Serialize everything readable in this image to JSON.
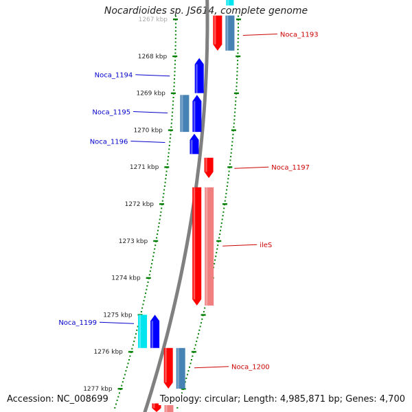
{
  "title": "Nocardioides sp. JS614, complete genome",
  "footer": {
    "accession": "Accession: NC_008699",
    "topology": "Topology: circular; Length: 4,985,871 bp; Genes: 4,700"
  },
  "colors": {
    "forward_gene": "#ff0000",
    "forward_secondary": "#f08080",
    "reverse_gene": "#0000ff",
    "reverse_secondary": "#4682b4",
    "cyan_gene": "#00e5ee",
    "scale_ticks": "#008000",
    "backbone": "#808080",
    "label_left": "#0000cc",
    "label_right": "#cc0000"
  },
  "scale": {
    "unit": "kbp",
    "ticks": [
      {
        "kbp": 1267,
        "label": "1267 kbp"
      },
      {
        "kbp": 1268,
        "label": "1268 kbp"
      },
      {
        "kbp": 1269,
        "label": "1269 kbp"
      },
      {
        "kbp": 1270,
        "label": "1270 kbp"
      },
      {
        "kbp": 1271,
        "label": "1271 kbp"
      },
      {
        "kbp": 1272,
        "label": "1272 kbp"
      },
      {
        "kbp": 1273,
        "label": "1273 kbp"
      },
      {
        "kbp": 1274,
        "label": "1274 kbp"
      },
      {
        "kbp": 1275,
        "label": "1275 kbp"
      },
      {
        "kbp": 1276,
        "label": "1276 kbp"
      },
      {
        "kbp": 1277,
        "label": "1277 kbp"
      }
    ]
  },
  "genes": [
    {
      "name": "Noca_1193",
      "strand": "+",
      "start_kbp": 1266.9,
      "end_kbp": 1267.85,
      "label_side": "right",
      "label_kbp": 1267.4
    },
    {
      "name": "Noca_1194",
      "strand": "-",
      "start_kbp": 1268.05,
      "end_kbp": 1269.0,
      "label_side": "left",
      "label_kbp": 1268.5
    },
    {
      "name": "Noca_1195",
      "strand": "-",
      "start_kbp": 1269.05,
      "end_kbp": 1270.05,
      "label_side": "left",
      "label_kbp": 1269.5
    },
    {
      "name": "Noca_1196",
      "strand": "-",
      "start_kbp": 1270.1,
      "end_kbp": 1270.65,
      "label_side": "left",
      "label_kbp": 1270.3
    },
    {
      "name": "Noca_1197",
      "strand": "+",
      "start_kbp": 1270.75,
      "end_kbp": 1271.3,
      "label_side": "right",
      "label_kbp": 1271.0
    },
    {
      "name": "ileS",
      "strand": "+",
      "start_kbp": 1271.55,
      "end_kbp": 1274.75,
      "label_side": "right",
      "label_kbp": 1273.1
    },
    {
      "name": "Noca_1199",
      "strand": "-",
      "start_kbp": 1275.0,
      "end_kbp": 1275.9,
      "label_side": "left",
      "label_kbp": 1275.2
    },
    {
      "name": "Noca_1200",
      "strand": "+",
      "start_kbp": 1275.9,
      "end_kbp": 1277.0,
      "label_side": "right",
      "label_kbp": 1276.4
    },
    {
      "name": "",
      "strand": "+",
      "start_kbp": 1277.4,
      "end_kbp": 1278.0,
      "label_side": "",
      "label_kbp": 0
    }
  ]
}
